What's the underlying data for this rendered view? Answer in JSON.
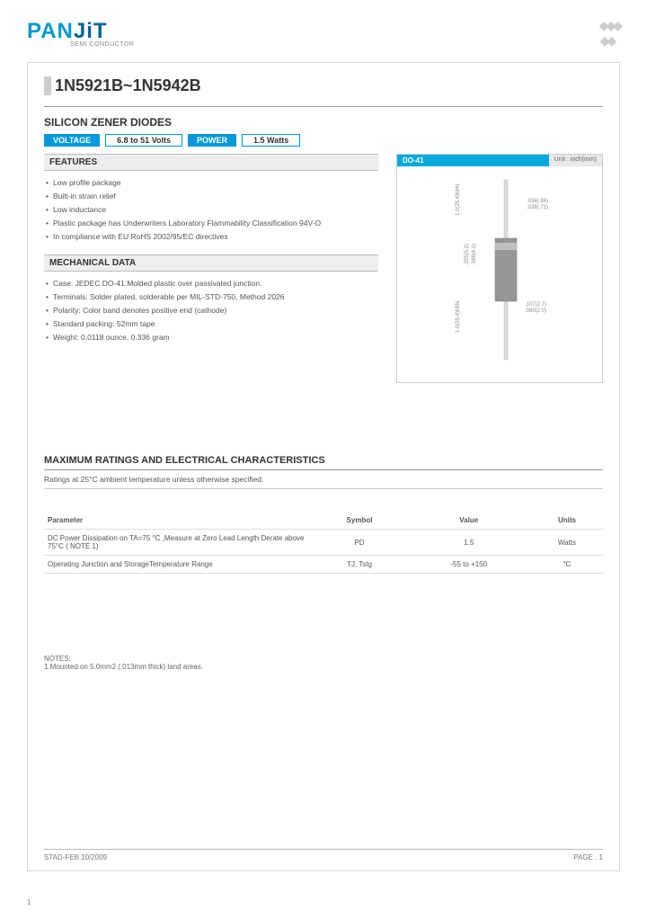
{
  "logo": {
    "pan": "PAN",
    "jt": "JiT",
    "sub": "SEMI\nCONDUCTOR"
  },
  "part_number": "1N5921B~1N5942B",
  "subtitle": "SILICON ZENER DIODES",
  "specs": {
    "voltage_label": "VOLTAGE",
    "voltage_value": "6.8 to 51 Volts",
    "power_label": "POWER",
    "power_value": "1.5 Watts"
  },
  "features": {
    "header": "FEATURES",
    "items": [
      "Low profile package",
      "Built-in strain relief",
      "Low inductance",
      "Plastic package has Underwriters Laboratory Flammability Classification 94V-O",
      "In compliance with EU RoHS 2002/95/EC directives"
    ]
  },
  "mechanical": {
    "header": "MECHANICAL DATA",
    "items": [
      "Case: JEDEC DO-41.Molded plastic over passivated junction.",
      "Terminals: Solder plated, solderable per MIL-STD-750, Method 2026",
      "Polarity: Color band denotes positive end (cathode)",
      "Standard packing: 52mm tape",
      "Weight: 0.0118 ounce, 0.336 gram"
    ]
  },
  "package": {
    "name": "DO-41",
    "unit_label": "Unit : inch(mm)",
    "dims": {
      "lead_top": "1.0(25.4)MIN.",
      "lead_bot": "1.0(25.4)MIN.",
      "body_d_a": ".205(5.2)",
      "body_d_b": ".166(4.1)",
      "body_w_a": ".107(2.7)",
      "body_w_b": ".080(2.0)",
      "wire_a": ".034(.88)",
      "wire_b": ".028(.71)"
    },
    "colors": {
      "lead": "#dcdcdc",
      "body": "#969696",
      "band": "#bfbfbf"
    }
  },
  "ratings": {
    "title": "MAXIMUM RATINGS AND ELECTRICAL CHARACTERISTICS",
    "sub": "Ratings at 25°C ambient temperature unless otherwise specified.",
    "columns": [
      "Parameter",
      "Symbol",
      "Value",
      "Units"
    ],
    "rows": [
      [
        "DC Power Dissipation on TA=75 °C ,Measure at Zero Lead Length Derate above 75°C ( NOTE 1)",
        "PD",
        "1.5",
        "Watts"
      ],
      [
        "Operating Junction and StorageTemperature Range",
        "TJ, Tstg",
        "-55 to +150",
        "°C"
      ]
    ]
  },
  "notes": {
    "label": "NOTES:",
    "items": [
      "1.Mounted on 5.0mm2 (.013mm thick) land areas."
    ]
  },
  "footer": {
    "left": "STAD-FEB.10/2009",
    "right": "PAGE .  1",
    "small": "1"
  }
}
